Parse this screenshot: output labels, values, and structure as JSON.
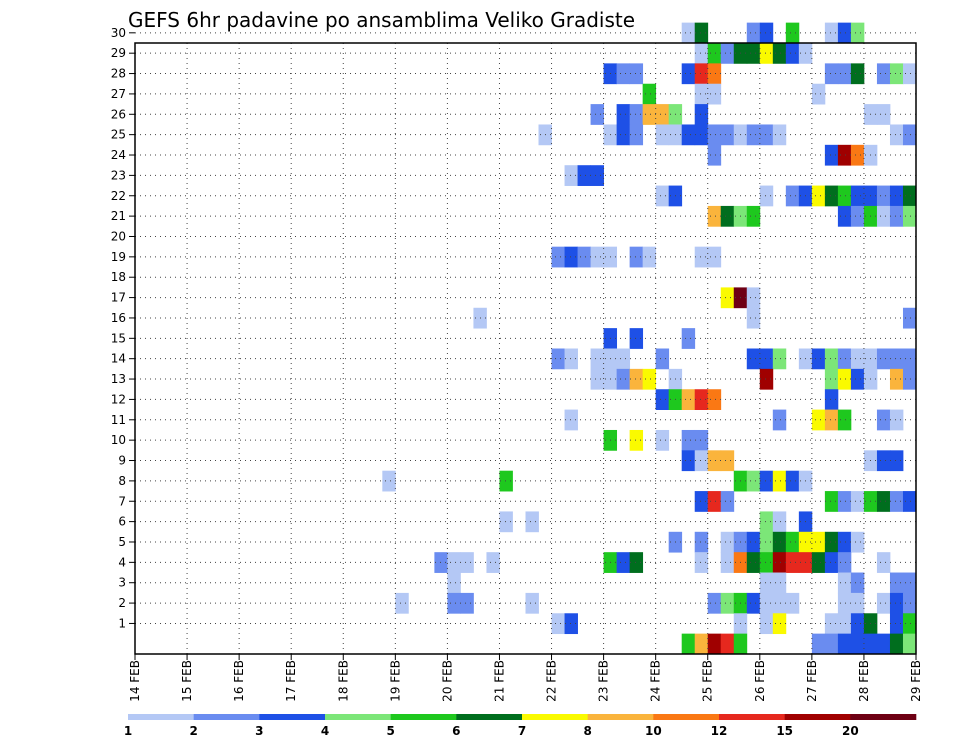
{
  "chart_data": {
    "type": "heatmap",
    "title": "GEFS 6hr padavine po ansamblima Veliko Gradiste",
    "xlabel": "",
    "ylabel": "",
    "x_ticks": [
      "14 FEB",
      "15 FEB",
      "16 FEB",
      "17 FEB",
      "18 FEB",
      "19 FEB",
      "20 FEB",
      "21 FEB",
      "22 FEB",
      "23 FEB",
      "24 FEB",
      "25 FEB",
      "26 FEB",
      "27 FEB",
      "28 FEB",
      "29 FEB"
    ],
    "y_ticks": [
      "1",
      "2",
      "3",
      "4",
      "5",
      "6",
      "7",
      "8",
      "9",
      "10",
      "11",
      "12",
      "13",
      "14",
      "15",
      "16",
      "17",
      "18",
      "19",
      "20",
      "21",
      "22",
      "23",
      "24",
      "25",
      "26",
      "27",
      "28",
      "29",
      "30"
    ],
    "grid": true,
    "legend_position": "bottom",
    "legend": {
      "boundaries": [
        "1",
        "2",
        "3",
        "4",
        "5",
        "6",
        "7",
        "8",
        "10",
        "12",
        "15",
        "20"
      ],
      "colors": [
        "#b4c8f5",
        "#6a8cf0",
        "#1e50e6",
        "#7ce678",
        "#1ec81e",
        "#006e1e",
        "#fafa00",
        "#fab43c",
        "#fa7814",
        "#e6281e",
        "#a00000",
        "#6e0014"
      ]
    },
    "time_axis": {
      "start": "14 FEB 00Z",
      "step_hours": 6,
      "steps": 60
    },
    "members": [
      {
        "member": 30,
        "cells": [
          [
            42,
            1
          ],
          [
            43,
            6
          ],
          [
            47,
            2
          ],
          [
            48,
            3
          ],
          [
            50,
            5
          ],
          [
            53,
            1
          ],
          [
            54,
            3
          ],
          [
            55,
            4
          ]
        ]
      },
      {
        "member": 29,
        "cells": [
          [
            43,
            1
          ],
          [
            44,
            5
          ],
          [
            45,
            2
          ],
          [
            46,
            6
          ],
          [
            47,
            6
          ],
          [
            48,
            7
          ],
          [
            49,
            6
          ],
          [
            50,
            3
          ],
          [
            51,
            1
          ]
        ]
      },
      {
        "member": 28,
        "cells": [
          [
            36,
            3
          ],
          [
            37,
            2
          ],
          [
            38,
            2
          ],
          [
            42,
            3
          ],
          [
            43,
            10
          ],
          [
            44,
            9
          ],
          [
            53,
            2
          ],
          [
            54,
            2
          ],
          [
            55,
            6
          ],
          [
            57,
            2
          ],
          [
            58,
            4
          ],
          [
            59,
            1
          ]
        ]
      },
      {
        "member": 27,
        "cells": [
          [
            39,
            5
          ],
          [
            43,
            1
          ],
          [
            44,
            1
          ],
          [
            52,
            1
          ]
        ]
      },
      {
        "member": 26,
        "cells": [
          [
            35,
            2
          ],
          [
            37,
            3
          ],
          [
            38,
            2
          ],
          [
            39,
            8
          ],
          [
            40,
            8
          ],
          [
            41,
            4
          ],
          [
            43,
            3
          ],
          [
            56,
            1
          ],
          [
            57,
            1
          ]
        ]
      },
      {
        "member": 25,
        "cells": [
          [
            31,
            1
          ],
          [
            36,
            1
          ],
          [
            37,
            3
          ],
          [
            38,
            2
          ],
          [
            40,
            1
          ],
          [
            41,
            1
          ],
          [
            42,
            3
          ],
          [
            43,
            3
          ],
          [
            44,
            2
          ],
          [
            45,
            2
          ],
          [
            46,
            1
          ],
          [
            47,
            2
          ],
          [
            48,
            2
          ],
          [
            49,
            1
          ],
          [
            58,
            1
          ],
          [
            59,
            2
          ]
        ]
      },
      {
        "member": 24,
        "cells": [
          [
            44,
            2
          ],
          [
            53,
            3
          ],
          [
            54,
            11
          ],
          [
            55,
            9
          ],
          [
            56,
            1
          ]
        ]
      },
      {
        "member": 23,
        "cells": [
          [
            33,
            1
          ],
          [
            34,
            3
          ],
          [
            35,
            3
          ]
        ]
      },
      {
        "member": 22,
        "cells": [
          [
            40,
            1
          ],
          [
            41,
            3
          ],
          [
            48,
            1
          ],
          [
            50,
            2
          ],
          [
            51,
            3
          ],
          [
            52,
            7
          ],
          [
            53,
            6
          ],
          [
            54,
            5
          ],
          [
            55,
            3
          ],
          [
            56,
            3
          ],
          [
            57,
            2
          ],
          [
            58,
            3
          ],
          [
            59,
            6
          ]
        ]
      },
      {
        "member": 21,
        "cells": [
          [
            44,
            8
          ],
          [
            45,
            6
          ],
          [
            46,
            4
          ],
          [
            47,
            5
          ],
          [
            54,
            3
          ],
          [
            55,
            2
          ],
          [
            56,
            5
          ],
          [
            57,
            1
          ],
          [
            58,
            2
          ],
          [
            59,
            4
          ]
        ]
      },
      {
        "member": 19,
        "cells": [
          [
            32,
            2
          ],
          [
            33,
            3
          ],
          [
            34,
            2
          ],
          [
            35,
            1
          ],
          [
            36,
            1
          ],
          [
            38,
            2
          ],
          [
            39,
            1
          ],
          [
            43,
            1
          ],
          [
            44,
            1
          ]
        ]
      },
      {
        "member": 17,
        "cells": [
          [
            45,
            7
          ],
          [
            46,
            12
          ],
          [
            47,
            1
          ]
        ]
      },
      {
        "member": 16,
        "cells": [
          [
            26,
            1
          ],
          [
            47,
            1
          ],
          [
            59,
            2
          ]
        ]
      },
      {
        "member": 15,
        "cells": [
          [
            36,
            3
          ],
          [
            38,
            3
          ],
          [
            42,
            2
          ]
        ]
      },
      {
        "member": 14,
        "cells": [
          [
            32,
            2
          ],
          [
            33,
            1
          ],
          [
            35,
            1
          ],
          [
            36,
            1
          ],
          [
            37,
            1
          ],
          [
            40,
            2
          ],
          [
            47,
            3
          ],
          [
            48,
            3
          ],
          [
            49,
            4
          ],
          [
            51,
            1
          ],
          [
            52,
            3
          ],
          [
            53,
            4
          ],
          [
            54,
            2
          ],
          [
            55,
            1
          ],
          [
            56,
            1
          ],
          [
            57,
            2
          ],
          [
            58,
            2
          ],
          [
            59,
            2
          ]
        ]
      },
      {
        "member": 13,
        "cells": [
          [
            35,
            1
          ],
          [
            36,
            1
          ],
          [
            37,
            2
          ],
          [
            38,
            8
          ],
          [
            39,
            7
          ],
          [
            41,
            1
          ],
          [
            48,
            11
          ],
          [
            53,
            4
          ],
          [
            54,
            7
          ],
          [
            55,
            3
          ],
          [
            56,
            1
          ],
          [
            58,
            8
          ],
          [
            59,
            2
          ]
        ]
      },
      {
        "member": 12,
        "cells": [
          [
            40,
            3
          ],
          [
            41,
            5
          ],
          [
            42,
            8
          ],
          [
            43,
            10
          ],
          [
            44,
            9
          ],
          [
            53,
            3
          ]
        ]
      },
      {
        "member": 11,
        "cells": [
          [
            33,
            1
          ],
          [
            49,
            2
          ],
          [
            52,
            7
          ],
          [
            53,
            8
          ],
          [
            54,
            5
          ],
          [
            57,
            2
          ],
          [
            58,
            1
          ]
        ]
      },
      {
        "member": 10,
        "cells": [
          [
            36,
            5
          ],
          [
            38,
            7
          ],
          [
            40,
            1
          ],
          [
            42,
            2
          ],
          [
            43,
            2
          ]
        ]
      },
      {
        "member": 9,
        "cells": [
          [
            42,
            3
          ],
          [
            43,
            1
          ],
          [
            44,
            8
          ],
          [
            45,
            8
          ],
          [
            56,
            1
          ],
          [
            57,
            3
          ],
          [
            58,
            3
          ]
        ]
      },
      {
        "member": 8,
        "cells": [
          [
            19,
            1
          ],
          [
            28,
            5
          ],
          [
            46,
            5
          ],
          [
            47,
            4
          ],
          [
            48,
            3
          ],
          [
            49,
            7
          ],
          [
            50,
            3
          ],
          [
            51,
            1
          ]
        ]
      },
      {
        "member": 7,
        "cells": [
          [
            43,
            3
          ],
          [
            44,
            10
          ],
          [
            45,
            2
          ],
          [
            53,
            5
          ],
          [
            54,
            2
          ],
          [
            55,
            1
          ],
          [
            56,
            5
          ],
          [
            57,
            6
          ],
          [
            58,
            2
          ],
          [
            59,
            3
          ]
        ]
      },
      {
        "member": 6,
        "cells": [
          [
            28,
            1
          ],
          [
            30,
            1
          ],
          [
            48,
            4
          ],
          [
            49,
            1
          ],
          [
            51,
            3
          ]
        ]
      },
      {
        "member": 5,
        "cells": [
          [
            41,
            2
          ],
          [
            43,
            2
          ],
          [
            45,
            1
          ],
          [
            46,
            2
          ],
          [
            47,
            3
          ],
          [
            48,
            4
          ],
          [
            49,
            6
          ],
          [
            50,
            5
          ],
          [
            51,
            7
          ],
          [
            52,
            7
          ],
          [
            53,
            6
          ],
          [
            54,
            3
          ],
          [
            55,
            1
          ]
        ]
      },
      {
        "member": 4,
        "cells": [
          [
            23,
            2
          ],
          [
            24,
            1
          ],
          [
            25,
            1
          ],
          [
            27,
            1
          ],
          [
            36,
            5
          ],
          [
            37,
            3
          ],
          [
            38,
            6
          ],
          [
            43,
            1
          ],
          [
            45,
            1
          ],
          [
            46,
            9
          ],
          [
            47,
            6
          ],
          [
            48,
            5
          ],
          [
            49,
            11
          ],
          [
            50,
            10
          ],
          [
            51,
            10
          ],
          [
            52,
            6
          ],
          [
            53,
            3
          ],
          [
            54,
            2
          ],
          [
            57,
            1
          ]
        ]
      },
      {
        "member": 3,
        "cells": [
          [
            24,
            1
          ],
          [
            48,
            1
          ],
          [
            49,
            1
          ],
          [
            54,
            1
          ],
          [
            55,
            2
          ],
          [
            58,
            2
          ],
          [
            59,
            2
          ]
        ]
      },
      {
        "member": 2,
        "cells": [
          [
            20,
            1
          ],
          [
            24,
            2
          ],
          [
            25,
            2
          ],
          [
            30,
            1
          ],
          [
            44,
            2
          ],
          [
            45,
            4
          ],
          [
            46,
            5
          ],
          [
            47,
            3
          ],
          [
            48,
            1
          ],
          [
            49,
            1
          ],
          [
            50,
            1
          ],
          [
            54,
            1
          ],
          [
            55,
            1
          ],
          [
            57,
            1
          ],
          [
            58,
            3
          ],
          [
            59,
            2
          ]
        ]
      },
      {
        "member": 1,
        "cells": [
          [
            32,
            1
          ],
          [
            33,
            3
          ],
          [
            46,
            1
          ],
          [
            48,
            1
          ],
          [
            49,
            7
          ],
          [
            53,
            1
          ],
          [
            54,
            1
          ],
          [
            55,
            3
          ],
          [
            56,
            6
          ],
          [
            58,
            3
          ],
          [
            59,
            5
          ]
        ]
      },
      {
        "member": 0,
        "cells": [
          [
            42,
            5
          ],
          [
            43,
            8
          ],
          [
            44,
            11
          ],
          [
            45,
            10
          ],
          [
            46,
            5
          ],
          [
            52,
            2
          ],
          [
            53,
            2
          ],
          [
            54,
            3
          ],
          [
            55,
            3
          ],
          [
            56,
            3
          ],
          [
            57,
            3
          ],
          [
            58,
            6
          ],
          [
            59,
            4
          ]
        ]
      }
    ]
  }
}
